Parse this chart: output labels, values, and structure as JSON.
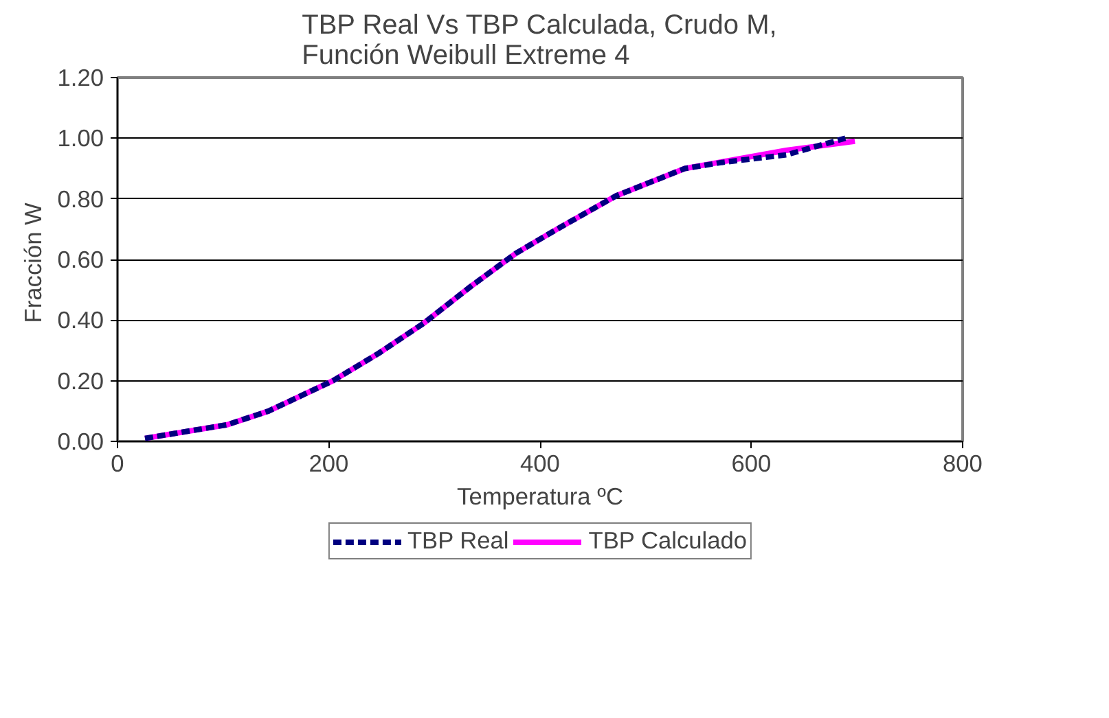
{
  "chart_data": {
    "type": "line",
    "title": "TBP Real Vs TBP Calculada, Crudo M,\nFunción Weibull Extreme 4",
    "xlabel": "Temperatura ºC",
    "ylabel": "Fracción  W",
    "xlim": [
      0,
      800
    ],
    "xticks": [
      0,
      200,
      400,
      600,
      800
    ],
    "ylim": [
      0,
      1.2
    ],
    "yticks": [
      {
        "value": 0,
        "label": "0.00"
      },
      {
        "value": 0.2,
        "label": "0.20"
      },
      {
        "value": 0.4,
        "label": "0.40"
      },
      {
        "value": 0.6,
        "label": "0.60"
      },
      {
        "value": 0.8,
        "label": "0.80"
      },
      {
        "value": 1.0,
        "label": "1.00"
      },
      {
        "value": 1.2,
        "label": "1.20"
      }
    ],
    "grid": "y",
    "legend": "bottom",
    "marker": "none",
    "series": [
      {
        "name": "TBP Real",
        "color": "#000080",
        "line_style": "dashed",
        "x": [
          26,
          104,
          143,
          204,
          247,
          290,
          334,
          377,
          416,
          472,
          537,
          572,
          633,
          689
        ],
        "values": [
          0.01,
          0.055,
          0.1,
          0.2,
          0.29,
          0.39,
          0.51,
          0.62,
          0.7,
          0.81,
          0.9,
          0.92,
          0.945,
          1.0
        ]
      },
      {
        "name": "TBP Calculado",
        "color": "#ff00ff",
        "line_style": "solid",
        "x": [
          26,
          104,
          143,
          204,
          247,
          290,
          334,
          377,
          416,
          472,
          537,
          633,
          698
        ],
        "values": [
          0.01,
          0.055,
          0.1,
          0.2,
          0.29,
          0.39,
          0.51,
          0.62,
          0.7,
          0.81,
          0.9,
          0.96,
          0.99
        ]
      }
    ]
  }
}
